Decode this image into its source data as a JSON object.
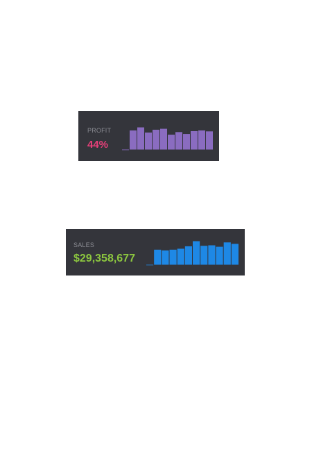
{
  "cards": {
    "profit": {
      "label": "PROFIT",
      "value": "44%",
      "value_color": "#e8407a",
      "bar_color": "#8a6cc0"
    },
    "sales": {
      "label": "SALES",
      "value": "$29,358,677",
      "value_color": "#8cc63f",
      "bar_color": "#1e88e5"
    }
  },
  "chart_data": [
    {
      "type": "bar",
      "series": [
        {
          "values": [
            0,
            0.81,
            0.94,
            0.72,
            0.84,
            0.88,
            0.63,
            0.74,
            0.66,
            0.78,
            0.81,
            0.77
          ]
        }
      ],
      "ylim": [
        0,
        1
      ],
      "grid": false
    },
    {
      "type": "bar",
      "series": [
        {
          "values": [
            0,
            0.62,
            0.59,
            0.62,
            0.66,
            0.76,
            0.97,
            0.78,
            0.8,
            0.74,
            0.92,
            0.86
          ]
        }
      ],
      "ylim": [
        0,
        1
      ],
      "grid": false
    }
  ]
}
